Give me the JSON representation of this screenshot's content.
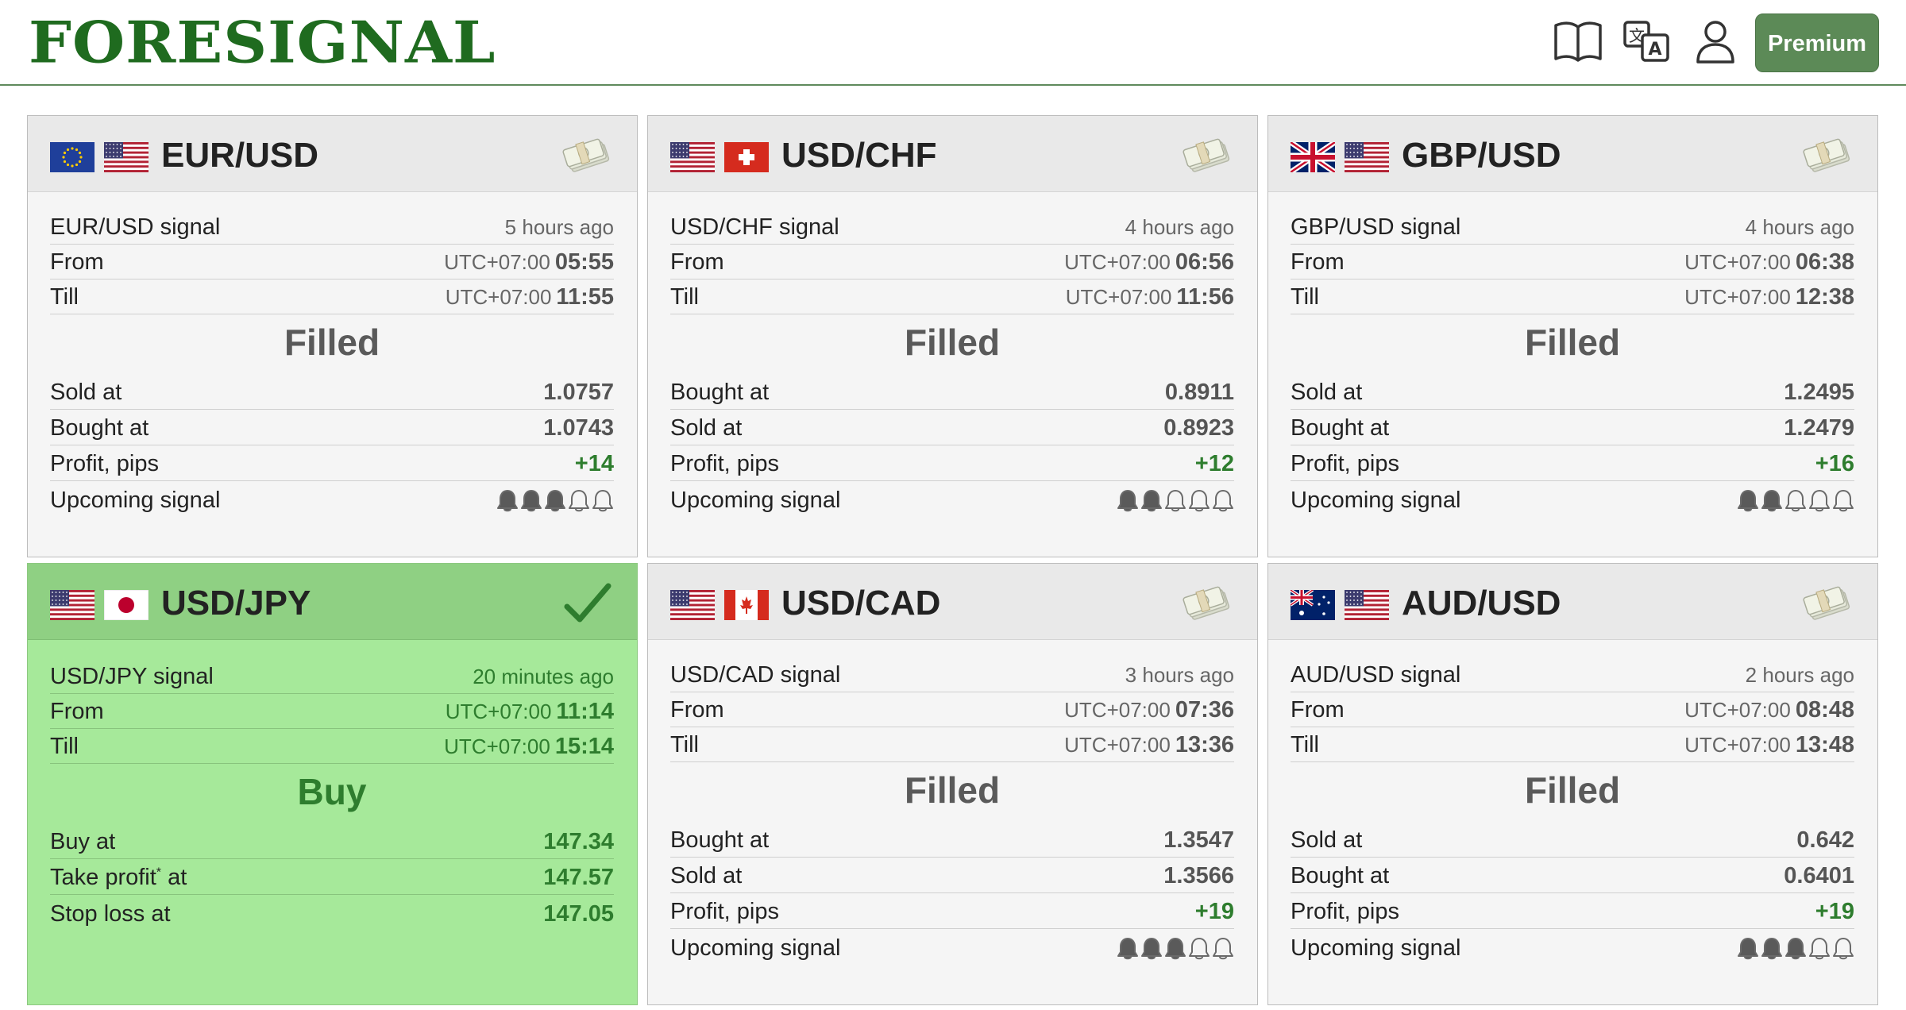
{
  "app": {
    "logo": "FORESIGNAL",
    "premium_label": "Premium",
    "icons": [
      "book-icon",
      "translate-icon",
      "user-icon"
    ]
  },
  "colors": {
    "brand_green": "#1f6b1f",
    "premium_bg": "#5c8a57",
    "active_card_bg": "#a6e99a",
    "profit_green": "#2e7d2e"
  },
  "cards": [
    {
      "pair": "EUR/USD",
      "flags": [
        "eu-flag",
        "us-flag"
      ],
      "status_icon": "money-icon",
      "signal_label": "EUR/USD signal",
      "ago": "5 hours ago",
      "from_label": "From",
      "from_tz": "UTC+07:00",
      "from_time": "05:55",
      "till_label": "Till",
      "till_tz": "UTC+07:00",
      "till_time": "11:55",
      "status": "Filled",
      "rows": [
        {
          "label": "Sold at",
          "value": "1.0757"
        },
        {
          "label": "Bought at",
          "value": "1.0743"
        },
        {
          "label": "Profit, pips",
          "value": "+14"
        }
      ],
      "upcoming_label": "Upcoming signal",
      "upcoming_level": 3
    },
    {
      "pair": "USD/CHF",
      "flags": [
        "us-flag",
        "ch-flag"
      ],
      "status_icon": "money-icon",
      "signal_label": "USD/CHF signal",
      "ago": "4 hours ago",
      "from_label": "From",
      "from_tz": "UTC+07:00",
      "from_time": "06:56",
      "till_label": "Till",
      "till_tz": "UTC+07:00",
      "till_time": "11:56",
      "status": "Filled",
      "rows": [
        {
          "label": "Bought at",
          "value": "0.8911"
        },
        {
          "label": "Sold at",
          "value": "0.8923"
        },
        {
          "label": "Profit, pips",
          "value": "+12"
        }
      ],
      "upcoming_label": "Upcoming signal",
      "upcoming_level": 2
    },
    {
      "pair": "GBP/USD",
      "flags": [
        "gb-flag",
        "us-flag"
      ],
      "status_icon": "money-icon",
      "signal_label": "GBP/USD signal",
      "ago": "4 hours ago",
      "from_label": "From",
      "from_tz": "UTC+07:00",
      "from_time": "06:38",
      "till_label": "Till",
      "till_tz": "UTC+07:00",
      "till_time": "12:38",
      "status": "Filled",
      "rows": [
        {
          "label": "Sold at",
          "value": "1.2495"
        },
        {
          "label": "Bought at",
          "value": "1.2479"
        },
        {
          "label": "Profit, pips",
          "value": "+16"
        }
      ],
      "upcoming_label": "Upcoming signal",
      "upcoming_level": 2
    },
    {
      "pair": "USD/JPY",
      "flags": [
        "us-flag",
        "jp-flag"
      ],
      "status_icon": "checkmark-icon",
      "signal_label": "USD/JPY signal",
      "ago": "20 minutes ago",
      "from_label": "From",
      "from_tz": "UTC+07:00",
      "from_time": "11:14",
      "till_label": "Till",
      "till_tz": "UTC+07:00",
      "till_time": "15:14",
      "status": "Buy",
      "rows": [
        {
          "label": "Buy at",
          "value": "147.34"
        },
        {
          "label": "Take profit",
          "label_sup": "*",
          "label_suffix": " at",
          "value": "147.57"
        },
        {
          "label": "Stop loss at",
          "value": "147.05"
        }
      ]
    },
    {
      "pair": "USD/CAD",
      "flags": [
        "us-flag",
        "ca-flag"
      ],
      "status_icon": "money-icon",
      "signal_label": "USD/CAD signal",
      "ago": "3 hours ago",
      "from_label": "From",
      "from_tz": "UTC+07:00",
      "from_time": "07:36",
      "till_label": "Till",
      "till_tz": "UTC+07:00",
      "till_time": "13:36",
      "status": "Filled",
      "rows": [
        {
          "label": "Bought at",
          "value": "1.3547"
        },
        {
          "label": "Sold at",
          "value": "1.3566"
        },
        {
          "label": "Profit, pips",
          "value": "+19"
        }
      ],
      "upcoming_label": "Upcoming signal",
      "upcoming_level": 3
    },
    {
      "pair": "AUD/USD",
      "flags": [
        "au-flag",
        "us-flag"
      ],
      "status_icon": "money-icon",
      "signal_label": "AUD/USD signal",
      "ago": "2 hours ago",
      "from_label": "From",
      "from_tz": "UTC+07:00",
      "from_time": "08:48",
      "till_label": "Till",
      "till_tz": "UTC+07:00",
      "till_time": "13:48",
      "status": "Filled",
      "rows": [
        {
          "label": "Sold at",
          "value": "0.642"
        },
        {
          "label": "Bought at",
          "value": "0.6401"
        },
        {
          "label": "Profit, pips",
          "value": "+19"
        }
      ],
      "upcoming_label": "Upcoming signal",
      "upcoming_level": 3
    }
  ]
}
